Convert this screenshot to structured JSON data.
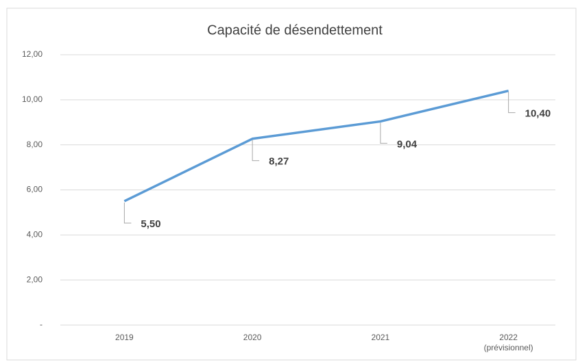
{
  "chart_data": {
    "type": "line",
    "title": "Capacité de désendettement",
    "categories": [
      "2019",
      "2020",
      "2021",
      "2022\n(prévisionnel)"
    ],
    "series": [
      {
        "name": "Capacité de désendettement",
        "color": "#5b9bd5",
        "values": [
          5.5,
          8.27,
          9.04,
          10.4
        ],
        "value_labels": [
          "5,50",
          "8,27",
          "9,04",
          "10,40"
        ]
      }
    ],
    "ylim": [
      0,
      12
    ],
    "yticks": [
      {
        "value": 0,
        "label": "-"
      },
      {
        "value": 2,
        "label": "2,00"
      },
      {
        "value": 4,
        "label": "4,00"
      },
      {
        "value": 6,
        "label": "6,00"
      },
      {
        "value": 8,
        "label": "8,00"
      },
      {
        "value": 10,
        "label": "10,00"
      },
      {
        "value": 12,
        "label": "12,00"
      }
    ],
    "grid": true
  }
}
